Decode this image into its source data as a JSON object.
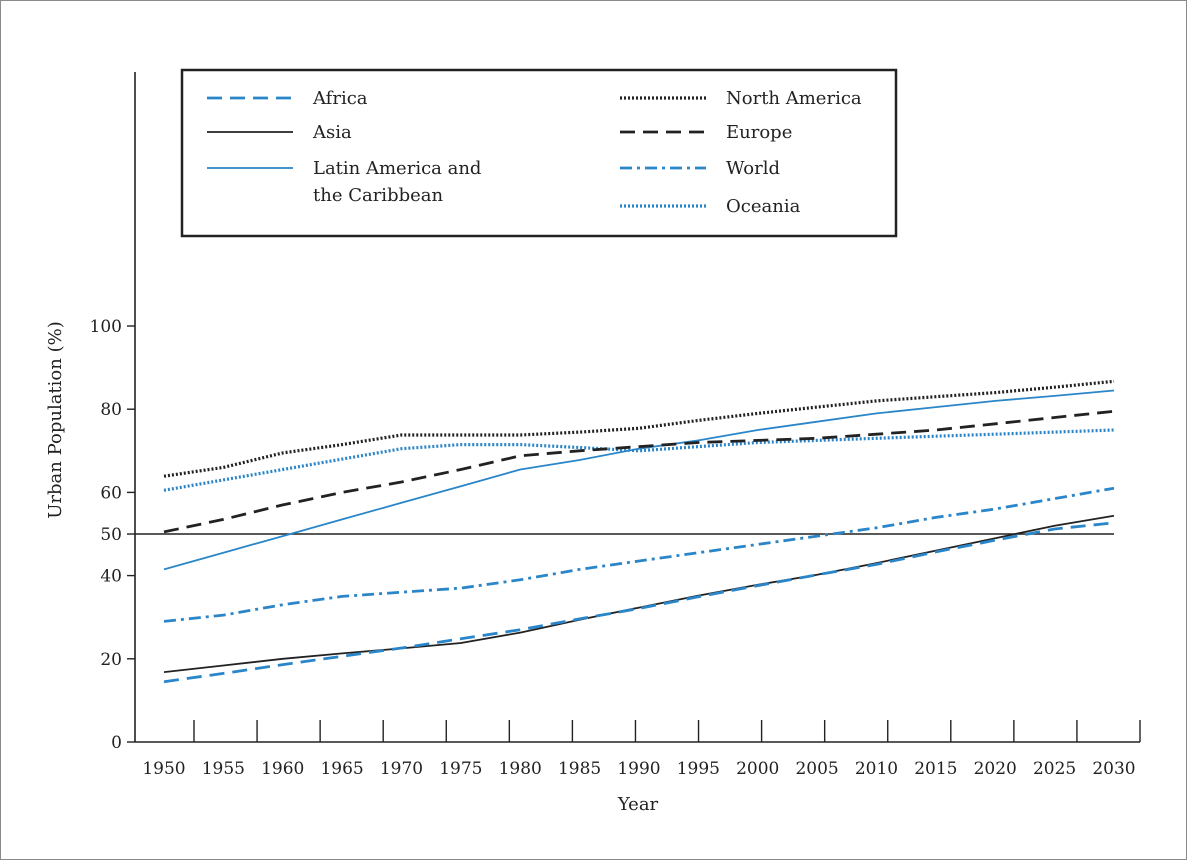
{
  "chart_data": {
    "type": "line",
    "title": "",
    "xlabel": "Year",
    "ylabel": "Urban Population (%)",
    "x": [
      1950,
      1955,
      1960,
      1965,
      1970,
      1975,
      1980,
      1985,
      1990,
      1995,
      2000,
      2005,
      2010,
      2015,
      2020,
      2025,
      2030
    ],
    "xlim": [
      1950,
      2030
    ],
    "ylim": [
      0,
      100
    ],
    "yticks": [
      0,
      20,
      40,
      50,
      60,
      80,
      100
    ],
    "xtick_labels": [
      "1950",
      "1955",
      "1960",
      "1965",
      "1970",
      "1975",
      "1980",
      "1985",
      "1990",
      "1995",
      "2000",
      "2005",
      "2010",
      "2015",
      "2020",
      "2025",
      "2030"
    ],
    "ytick_labels": [
      "0",
      "20",
      "40",
      "50",
      "60",
      "80",
      "100"
    ],
    "reference_line": {
      "y": 50,
      "color": "#222222"
    },
    "grid": false,
    "legend_position": "top",
    "series": [
      {
        "name": "Africa",
        "color": "#2a86c8",
        "style": "dashed",
        "values": [
          14.5,
          16.5,
          18.6,
          20.6,
          22.6,
          24.8,
          27.0,
          29.6,
          32.1,
          34.9,
          37.6,
          40.2,
          42.7,
          45.7,
          48.5,
          51.2,
          52.7
        ]
      },
      {
        "name": "Asia",
        "color": "#222222",
        "style": "solid",
        "values": [
          16.8,
          18.4,
          20.0,
          21.3,
          22.5,
          23.8,
          26.3,
          29.4,
          32.3,
          35.2,
          37.8,
          40.2,
          43.0,
          46.0,
          49.0,
          52.0,
          54.4
        ]
      },
      {
        "name": "Latin America and the Caribbean",
        "color": "#2a86c8",
        "style": "solid",
        "values": [
          41.5,
          45.5,
          49.5,
          53.5,
          57.5,
          61.5,
          65.5,
          67.8,
          70.5,
          72.5,
          75.0,
          77.0,
          79.0,
          80.5,
          82.0,
          83.2,
          84.5
        ]
      },
      {
        "name": "North America",
        "color": "#222222",
        "style": "dotted",
        "values": [
          63.9,
          66.0,
          69.5,
          71.5,
          73.8,
          73.8,
          73.8,
          74.5,
          75.4,
          77.3,
          79.0,
          80.5,
          82.0,
          83.0,
          84.0,
          85.3,
          86.7
        ]
      },
      {
        "name": "Europe",
        "color": "#222222",
        "style": "dashed",
        "values": [
          50.5,
          53.5,
          57.0,
          60.0,
          62.5,
          65.5,
          68.8,
          70.0,
          71.0,
          72.0,
          72.5,
          73.0,
          74.0,
          75.0,
          76.5,
          78.0,
          79.5
        ]
      },
      {
        "name": "World",
        "color": "#2a86c8",
        "style": "dashdot",
        "values": [
          29.0,
          30.5,
          33.0,
          35.0,
          36.0,
          37.0,
          39.0,
          41.5,
          43.5,
          45.5,
          47.5,
          49.5,
          51.5,
          54.0,
          56.0,
          58.5,
          61.0
        ]
      },
      {
        "name": "Oceania",
        "color": "#2a86c8",
        "style": "dotted",
        "values": [
          60.5,
          63.0,
          65.5,
          68.0,
          70.5,
          71.5,
          71.5,
          70.8,
          70.0,
          71.0,
          72.0,
          72.5,
          73.0,
          73.5,
          74.0,
          74.5,
          75.0
        ]
      }
    ]
  }
}
